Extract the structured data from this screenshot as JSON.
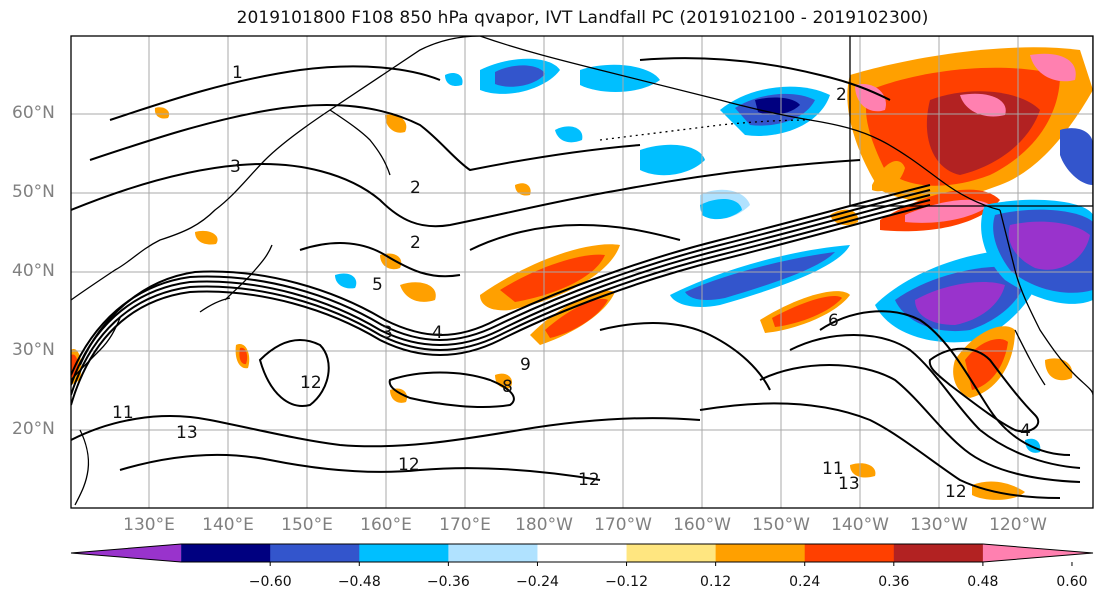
{
  "title": "2019101800 F108 850 hPa qvapor, IVT Landfall PC (2019102100 - 2019102300)",
  "map": {
    "lat_labels": [
      "60°N",
      "50°N",
      "40°N",
      "30°N",
      "20°N"
    ],
    "lon_labels": [
      "130°E",
      "140°E",
      "150°E",
      "160°E",
      "170°E",
      "180°W",
      "170°W",
      "160°W",
      "150°W",
      "140°W",
      "130°W",
      "120°W"
    ],
    "contour_labels": [
      "1",
      "2",
      "2",
      "2",
      "3",
      "3",
      "4",
      "5",
      "6",
      "8",
      "9",
      "11",
      "12",
      "12",
      "12",
      "13",
      "13",
      "4",
      "12",
      "11"
    ],
    "colors": {
      "purple": "#9933cc",
      "navy": "#000080",
      "royal": "#3355cc",
      "cyan": "#00bfff",
      "lightblue": "#b0e2ff",
      "white": "#ffffff",
      "lightyellow": "#ffe680",
      "orange": "#ffa000",
      "redorange": "#ff4000",
      "darkred": "#b22222",
      "pink": "#ff80b0"
    }
  },
  "colorbar": {
    "ticks": [
      "−0.60",
      "−0.48",
      "−0.36",
      "−0.24",
      "−0.12",
      "0.12",
      "0.24",
      "0.36",
      "0.48",
      "0.60"
    ],
    "colors": [
      "#9933cc",
      "#000080",
      "#3355cc",
      "#00bfff",
      "#b0e2ff",
      "#ffffff",
      "#ffe680",
      "#ffa000",
      "#ff4000",
      "#b22222",
      "#ff80b0"
    ]
  }
}
